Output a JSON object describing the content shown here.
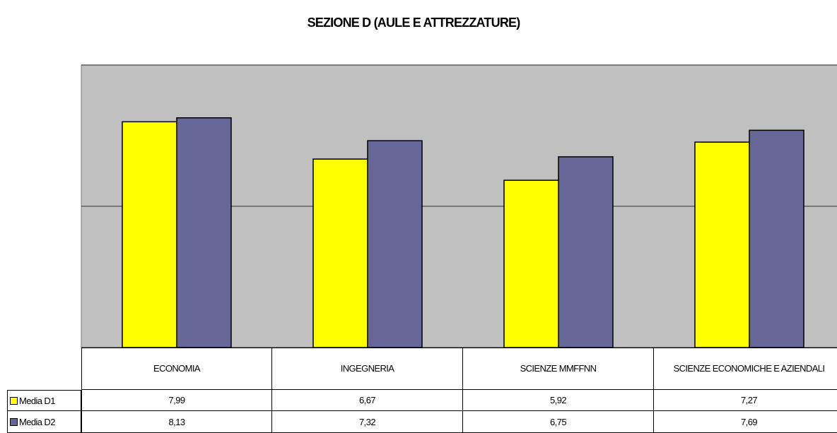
{
  "chart_data": {
    "type": "bar",
    "title": "SEZIONE D (AULE E ATTREZZATURE)",
    "categories": [
      "ECONOMIA",
      "INGEGNERIA",
      "SCIENZE MMFFNN",
      "SCIENZE ECONOMICHE E AZIENDALI"
    ],
    "series": [
      {
        "name": "Media D1",
        "color": "#ffff00",
        "values": [
          7.99,
          6.67,
          5.92,
          7.27
        ],
        "value_labels": [
          "7,99",
          "6,67",
          "5,92",
          "7,27"
        ]
      },
      {
        "name": "Media D2",
        "color": "#666699",
        "values": [
          8.13,
          7.32,
          6.75,
          7.69
        ],
        "value_labels": [
          "8,13",
          "7,32",
          "6,75",
          "7,69"
        ]
      }
    ],
    "ylim": [
      0,
      10
    ],
    "yticks": [
      0,
      5,
      10
    ],
    "grid": true,
    "plot_background": "#c0c0c0"
  }
}
